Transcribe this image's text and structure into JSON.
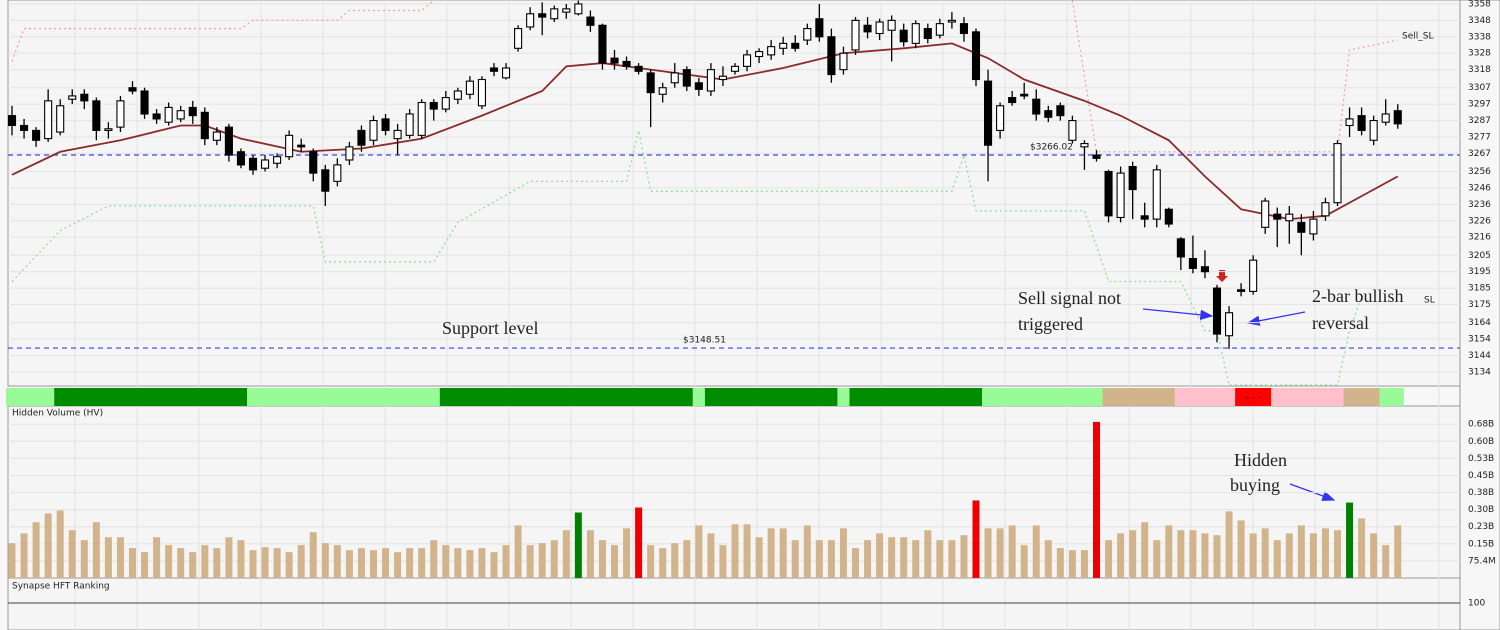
{
  "chart_data": [
    {
      "type": "candlestick",
      "ylim": [
        3125.4,
        3360.4
      ],
      "yticks": [
        3358,
        3348,
        3338,
        3328,
        3318,
        3307,
        3297,
        3287,
        3277,
        3267,
        3256,
        3246,
        3236,
        3226,
        3216,
        3205,
        3195,
        3185,
        3175,
        3164,
        3154,
        3144,
        3134
      ],
      "up_color": "#ffffff",
      "down_color": "#000000",
      "ohlc": [
        [
          3290,
          3296,
          3278,
          3284
        ],
        [
          3284,
          3288,
          3276,
          3281
        ],
        [
          3281,
          3283,
          3271,
          3275
        ],
        [
          3276,
          3306,
          3274,
          3299
        ],
        [
          3280,
          3300,
          3278,
          3296
        ],
        [
          3300,
          3306,
          3297,
          3302
        ],
        [
          3303,
          3306,
          3294,
          3299
        ],
        [
          3299,
          3301,
          3275,
          3281
        ],
        [
          3281,
          3286,
          3276,
          3282
        ],
        [
          3283,
          3302,
          3280,
          3299
        ],
        [
          3307,
          3311,
          3303,
          3305
        ],
        [
          3305,
          3307,
          3288,
          3291
        ],
        [
          3291,
          3294,
          3285,
          3288
        ],
        [
          3286,
          3298,
          3284,
          3295
        ],
        [
          3288,
          3296,
          3286,
          3293
        ],
        [
          3295,
          3299,
          3285,
          3290
        ],
        [
          3292,
          3295,
          3272,
          3276
        ],
        [
          3275,
          3283,
          3272,
          3280
        ],
        [
          3283,
          3285,
          3262,
          3266
        ],
        [
          3268,
          3270,
          3258,
          3260
        ],
        [
          3264,
          3266,
          3254,
          3257
        ],
        [
          3258,
          3266,
          3256,
          3263
        ],
        [
          3261,
          3267,
          3258,
          3265
        ],
        [
          3265,
          3281,
          3263,
          3278
        ],
        [
          3272,
          3276,
          3268,
          3271
        ],
        [
          3268,
          3270,
          3250,
          3255
        ],
        [
          3257,
          3260,
          3235,
          3244
        ],
        [
          3250,
          3264,
          3247,
          3260
        ],
        [
          3263,
          3274,
          3260,
          3271
        ],
        [
          3281,
          3284,
          3268,
          3272
        ],
        [
          3275,
          3290,
          3272,
          3287
        ],
        [
          3288,
          3291,
          3278,
          3281
        ],
        [
          3276,
          3285,
          3266,
          3281
        ],
        [
          3278,
          3294,
          3276,
          3291
        ],
        [
          3278,
          3300,
          3276,
          3298
        ],
        [
          3298,
          3300,
          3287,
          3294
        ],
        [
          3294,
          3305,
          3292,
          3301
        ],
        [
          3300,
          3307,
          3297,
          3305
        ],
        [
          3303,
          3314,
          3300,
          3311
        ],
        [
          3296,
          3314,
          3294,
          3312
        ],
        [
          3319,
          3322,
          3314,
          3317
        ],
        [
          3313,
          3322,
          3312,
          3319
        ],
        [
          3331,
          3345,
          3329,
          3343
        ],
        [
          3344,
          3356,
          3342,
          3352
        ],
        [
          3352,
          3359,
          3339,
          3350
        ],
        [
          3349,
          3357,
          3347,
          3355
        ],
        [
          3353,
          3358,
          3349,
          3355
        ],
        [
          3352,
          3360,
          3351,
          3358
        ],
        [
          3350,
          3354,
          3341,
          3345
        ],
        [
          3345,
          3346,
          3318,
          3322
        ],
        [
          3325,
          3330,
          3318,
          3322
        ],
        [
          3323,
          3326,
          3318,
          3320
        ],
        [
          3320,
          3322,
          3315,
          3317
        ],
        [
          3316,
          3318,
          3283,
          3304
        ],
        [
          3303,
          3310,
          3298,
          3307
        ],
        [
          3310,
          3322,
          3307,
          3316
        ],
        [
          3318,
          3320,
          3305,
          3308
        ],
        [
          3310,
          3313,
          3302,
          3306
        ],
        [
          3305,
          3322,
          3302,
          3318
        ],
        [
          3312,
          3320,
          3308,
          3314
        ],
        [
          3317,
          3322,
          3315,
          3320
        ],
        [
          3320,
          3330,
          3317,
          3327
        ],
        [
          3326,
          3331,
          3322,
          3329
        ],
        [
          3327,
          3336,
          3324,
          3332
        ],
        [
          3331,
          3338,
          3327,
          3334
        ],
        [
          3334,
          3339,
          3329,
          3331
        ],
        [
          3336,
          3346,
          3333,
          3343
        ],
        [
          3349,
          3358,
          3335,
          3338
        ],
        [
          3338,
          3343,
          3310,
          3315
        ],
        [
          3318,
          3332,
          3315,
          3328
        ],
        [
          3330,
          3350,
          3327,
          3348
        ],
        [
          3345,
          3350,
          3337,
          3341
        ],
        [
          3340,
          3349,
          3336,
          3347
        ],
        [
          3342,
          3351,
          3323,
          3348
        ],
        [
          3342,
          3346,
          3332,
          3335
        ],
        [
          3334,
          3348,
          3331,
          3346
        ],
        [
          3343,
          3346,
          3334,
          3337
        ],
        [
          3339,
          3349,
          3337,
          3346
        ],
        [
          3347,
          3353,
          3343,
          3348
        ],
        [
          3346,
          3350,
          3335,
          3340
        ],
        [
          3341,
          3343,
          3308,
          3312
        ],
        [
          3311,
          3318,
          3250,
          3272
        ],
        [
          3281,
          3298,
          3276,
          3296
        ],
        [
          3301,
          3305,
          3296,
          3298
        ],
        [
          3303,
          3310,
          3300,
          3302
        ],
        [
          3300,
          3306,
          3287,
          3291
        ],
        [
          3293,
          3296,
          3286,
          3289
        ],
        [
          3296,
          3298,
          3287,
          3290
        ],
        [
          3275,
          3290,
          3273,
          3287
        ],
        [
          3271,
          3275,
          3257,
          3273
        ],
        [
          3266,
          3269,
          3262,
          3264
        ],
        [
          3256,
          3257,
          3225,
          3229
        ],
        [
          3228,
          3259,
          3225,
          3255
        ],
        [
          3259,
          3262,
          3227,
          3245
        ],
        [
          3229,
          3237,
          3222,
          3227
        ],
        [
          3227,
          3260,
          3222,
          3257
        ],
        [
          3233,
          3234,
          3222,
          3224
        ],
        [
          3215,
          3216,
          3196,
          3204
        ],
        [
          3203,
          3217,
          3194,
          3197
        ],
        [
          3198,
          3208,
          3191,
          3195
        ],
        [
          3185,
          3187,
          3152,
          3157
        ],
        [
          3156,
          3174,
          3148,
          3170
        ],
        [
          3184,
          3188,
          3180,
          3183
        ],
        [
          3183,
          3205,
          3181,
          3202
        ],
        [
          3222,
          3240,
          3218,
          3238
        ],
        [
          3230,
          3234,
          3210,
          3227
        ],
        [
          3226,
          3235,
          3212,
          3230
        ],
        [
          3225,
          3230,
          3205,
          3219
        ],
        [
          3218,
          3232,
          3214,
          3227
        ],
        [
          3229,
          3240,
          3226,
          3237
        ],
        [
          3237,
          3275,
          3235,
          3273
        ],
        [
          3284,
          3295,
          3277,
          3288
        ],
        [
          3290,
          3295,
          3278,
          3281
        ],
        [
          3275,
          3290,
          3272,
          3287
        ],
        [
          3286,
          3300,
          3284,
          3291
        ],
        [
          3293,
          3297,
          3282,
          3285
        ]
      ],
      "moving_average": {
        "color": "#8b2a2a",
        "x": [
          0,
          4,
          9,
          14,
          16,
          19,
          24,
          29,
          34,
          39,
          44,
          46,
          49,
          54,
          59,
          64,
          69,
          74,
          78,
          81,
          84,
          89,
          92,
          96,
          99,
          102,
          106,
          109,
          112,
          115
        ],
        "values": [
          3254,
          3268,
          3275,
          3284,
          3284,
          3276,
          3268,
          3270,
          3276,
          3290,
          3305,
          3320,
          3322,
          3317,
          3312,
          3319,
          3328,
          3331,
          3334,
          3325,
          3312,
          3299,
          3290,
          3275,
          3253,
          3233,
          3227,
          3229,
          3241,
          3253
        ]
      },
      "sell_stop": {
        "label": "Sell_SL",
        "color": "#f4a0a8",
        "x": [
          0,
          1,
          19,
          20,
          27,
          28,
          34,
          35,
          60,
          88,
          90,
          110,
          111,
          115
        ],
        "values": [
          3323,
          3343,
          3343,
          3348,
          3348,
          3354,
          3354,
          3360,
          null,
          3360,
          3268,
          3268,
          3330,
          3336
        ]
      },
      "buy_stop": {
        "label": "SL",
        "color": "#90e090",
        "x": [
          0,
          4,
          8,
          25,
          26,
          35,
          37,
          43,
          51,
          52,
          53,
          78,
          79,
          80,
          89,
          91,
          97,
          99,
          100,
          101,
          110,
          111,
          112
        ],
        "values": [
          3189,
          3220,
          3235,
          3235,
          3201,
          3201,
          3225,
          3250,
          3250,
          3281,
          3244,
          3244,
          3266,
          3232,
          3232,
          3189,
          3189,
          3159,
          3159,
          3126,
          3126,
          3159,
          3180
        ]
      },
      "levels": {
        "color": "#3344ee",
        "values": [
          3266.02,
          3148.51
        ],
        "value_labels": [
          "$3266.02",
          "$3148.51"
        ]
      },
      "annotation_color": "#3333cc",
      "annotations": [
        {
          "lines": [
            "Support level"
          ]
        },
        {
          "lines": [
            "Sell signal not",
            "triggered"
          ]
        },
        {
          "lines": [
            "2-bar bullish",
            "reversal"
          ]
        }
      ],
      "ranking_strip": [
        {
          "count": 4,
          "color": "#98fb98"
        },
        {
          "count": 16,
          "color": "#008c00"
        },
        {
          "count": 16,
          "color": "#98fb98"
        },
        {
          "count": 21,
          "color": "#008c00"
        },
        {
          "count": 1,
          "color": "#98fb98"
        },
        {
          "count": 11,
          "color": "#008c00"
        },
        {
          "count": 1,
          "color": "#98fb98"
        },
        {
          "count": 11,
          "color": "#008c00"
        },
        {
          "count": 10,
          "color": "#98fb98"
        },
        {
          "count": 6,
          "color": "#d2b48c"
        },
        {
          "count": 5,
          "color": "#ffc0cb"
        },
        {
          "count": 3,
          "color": "#ff0000",
          "label": "- - -"
        },
        {
          "count": 6,
          "color": "#ffc0cb"
        },
        {
          "count": 3,
          "color": "#d2b48c"
        },
        {
          "count": 2,
          "color": "#98fb98"
        }
      ]
    },
    {
      "type": "bar",
      "title": "Hidden Volume (HV)",
      "color": "#d2b48c",
      "ylim": [
        0,
        759
      ],
      "yticks": [
        {
          "value": 678.6,
          "label": "0.68B"
        },
        {
          "value": 603.2,
          "label": "0.60B"
        },
        {
          "value": 527.8,
          "label": "0.53B"
        },
        {
          "value": 452.4,
          "label": "0.45B"
        },
        {
          "value": 377,
          "label": "0.38B"
        },
        {
          "value": 301.6,
          "label": "0.30B"
        },
        {
          "value": 226.2,
          "label": "0.23B"
        },
        {
          "value": 150.8,
          "label": "0.15B"
        },
        {
          "value": 75.4,
          "label": "75.4M"
        }
      ],
      "values": [
        154,
        197,
        246,
        285,
        298,
        211,
        167,
        246,
        180,
        180,
        132,
        114,
        180,
        145,
        132,
        114,
        145,
        132,
        180,
        167,
        123,
        136,
        132,
        114,
        145,
        202,
        154,
        145,
        123,
        132,
        123,
        132,
        114,
        132,
        132,
        167,
        145,
        132,
        123,
        132,
        114,
        145,
        232,
        145,
        154,
        167,
        211,
        289,
        211,
        167,
        145,
        219,
        311,
        145,
        132,
        154,
        167,
        232,
        197,
        145,
        237,
        237,
        180,
        219,
        219,
        167,
        232,
        167,
        167,
        219,
        132,
        167,
        197,
        180,
        180,
        167,
        211,
        167,
        167,
        189,
        342,
        219,
        219,
        232,
        145,
        232,
        167,
        132,
        123,
        123,
        689,
        167,
        197,
        211,
        246,
        167,
        232,
        211,
        211,
        197,
        189,
        294,
        254,
        197,
        219,
        167,
        197,
        232,
        197,
        219,
        211,
        333,
        263,
        197,
        145,
        232
      ],
      "highlights": [
        {
          "index": 47,
          "color": "#008000"
        },
        {
          "index": 52,
          "color": "#ee0000"
        },
        {
          "index": 80,
          "color": "#ee0000"
        },
        {
          "index": 90,
          "color": "#ee0000"
        },
        {
          "index": 111,
          "color": "#008000"
        }
      ],
      "annotations": [
        {
          "lines": [
            "Hidden",
            "buying"
          ]
        }
      ]
    },
    {
      "type": "indicator",
      "title": "Synapse HFT Ranking",
      "ylim": [
        0,
        200
      ],
      "yticks": [
        100
      ]
    }
  ]
}
